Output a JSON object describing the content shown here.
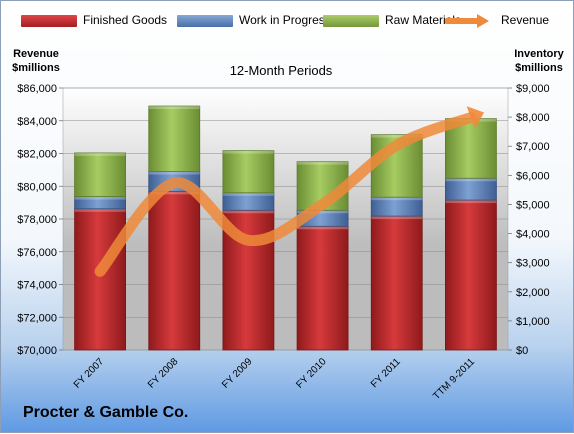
{
  "legend": {
    "finished_goods": "Finished Goods",
    "work_in_progress": "Work in Progress",
    "raw_materials": "Raw Materials",
    "revenue": "Revenue"
  },
  "left_axis_title": {
    "line1": "Revenue",
    "line2": "$millions"
  },
  "right_axis_title": {
    "line1": "Inventory",
    "line2": "$millions"
  },
  "subtitle": "12-Month Periods",
  "company": "Procter & Gamble Co.",
  "colors": {
    "finished_goods": "#c0282b",
    "work_in_progress": "#5b82bd",
    "raw_materials": "#8db44a",
    "revenue": "#ef8a3a"
  },
  "chart_data": {
    "type": "bar",
    "stacked": true,
    "categories": [
      "FY 2007",
      "FY 2008",
      "FY 2009",
      "FY 2010",
      "FY 2011",
      "TTM 9-2011"
    ],
    "left_axis": {
      "label": "Revenue $millions",
      "ylim": [
        70000,
        86000
      ],
      "ticks": [
        "$70,000",
        "$72,000",
        "$74,000",
        "$76,000",
        "$78,000",
        "$80,000",
        "$82,000",
        "$84,000",
        "$86,000"
      ]
    },
    "right_axis": {
      "label": "Inventory $millions",
      "ylim": [
        0,
        9000
      ],
      "ticks": [
        "$0",
        "$1,000",
        "$2,000",
        "$3,000",
        "$4,000",
        "$5,000",
        "$6,000",
        "$7,000",
        "$8,000",
        "$9,000"
      ]
    },
    "series": [
      {
        "name": "Finished Goods",
        "axis": "right",
        "kind": "bar",
        "values": [
          4850,
          5450,
          4800,
          4250,
          4600,
          5150
        ]
      },
      {
        "name": "Work in Progress",
        "axis": "right",
        "kind": "bar",
        "values": [
          420,
          680,
          600,
          550,
          650,
          750
        ]
      },
      {
        "name": "Raw Materials",
        "axis": "right",
        "kind": "bar",
        "values": [
          1500,
          2250,
          1450,
          1670,
          2150,
          2050
        ]
      },
      {
        "name": "Revenue",
        "axis": "left",
        "kind": "line",
        "values": [
          74800,
          80200,
          76700,
          78900,
          82500,
          84200
        ]
      }
    ],
    "grid": true
  }
}
